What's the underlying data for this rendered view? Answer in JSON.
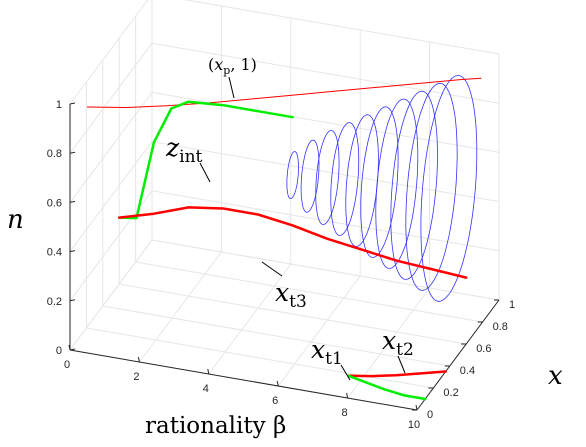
{
  "chart_data": {
    "type": "line",
    "projection": "3d",
    "grid": true,
    "xlabel": "rationality β",
    "ylabel": "x",
    "zlabel": "n",
    "xlim": [
      0,
      10
    ],
    "ylim": [
      0,
      1
    ],
    "zlim": [
      0,
      1
    ],
    "x_ticks": [
      "0",
      "2",
      "4",
      "6",
      "8",
      "10"
    ],
    "y_ticks": [
      "0",
      "0.2",
      "0.4",
      "0.6",
      "0.8",
      "1"
    ],
    "z_ticks": [
      "0",
      "0.2",
      "0.4",
      "0.6",
      "0.8",
      "1"
    ],
    "colors": {
      "red": "#ff0000",
      "green": "#00ee00",
      "blue": "#3333ff",
      "grid": "#e6e6e6",
      "axis": "#262626"
    },
    "annotations": [
      {
        "label": "(x_p, 1)",
        "text": "(",
        "var": "x",
        "sub": "p",
        "tail": ", 1)"
      },
      {
        "label": "z_int",
        "var": "z",
        "sub": "int"
      },
      {
        "label": "x_t3",
        "var": "x",
        "sub": "t3"
      },
      {
        "label": "x_t1",
        "var": "x",
        "sub": "t1"
      },
      {
        "label": "x_t2",
        "var": "x",
        "sub": "t2"
      }
    ],
    "series": [
      {
        "color": "red",
        "width": 1,
        "points": [
          [
            0.5,
            0.0,
            1.0
          ],
          [
            1.5,
            0.05,
            1.0
          ],
          [
            2.5,
            0.12,
            1.0
          ],
          [
            3.5,
            0.2,
            1.0
          ],
          [
            4.5,
            0.29,
            1.0
          ],
          [
            5.5,
            0.38,
            1.0
          ],
          [
            6.5,
            0.47,
            1.0
          ],
          [
            7.5,
            0.56,
            1.0
          ],
          [
            8.5,
            0.65,
            1.0
          ],
          [
            9.5,
            0.74,
            1.0
          ],
          [
            10.0,
            0.78,
            1.0
          ]
        ]
      },
      {
        "color": "green",
        "width": 2.5,
        "points": [
          [
            0.0,
            0.6,
            0.27
          ],
          [
            0.5,
            0.6,
            0.28
          ],
          [
            1.0,
            0.6,
            0.6
          ],
          [
            1.5,
            0.6,
            0.75
          ],
          [
            2.0,
            0.6,
            0.79
          ],
          [
            3.0,
            0.6,
            0.8
          ],
          [
            4.0,
            0.6,
            0.8
          ],
          [
            5.0,
            0.6,
            0.8
          ]
        ]
      },
      {
        "color": "red",
        "width": 2.5,
        "points": [
          [
            0.0,
            0.6,
            0.27
          ],
          [
            1.0,
            0.6,
            0.31
          ],
          [
            2.0,
            0.6,
            0.36
          ],
          [
            3.0,
            0.6,
            0.38
          ],
          [
            4.0,
            0.6,
            0.38
          ],
          [
            5.0,
            0.6,
            0.36
          ],
          [
            6.0,
            0.6,
            0.33
          ],
          [
            7.0,
            0.6,
            0.31
          ],
          [
            8.0,
            0.6,
            0.29
          ],
          [
            9.0,
            0.6,
            0.28
          ],
          [
            10.0,
            0.6,
            0.27
          ]
        ]
      },
      {
        "color": "red",
        "width": 2.5,
        "points": [
          [
            7.6,
            0.18,
            0.0
          ],
          [
            8.2,
            0.21,
            0.0
          ],
          [
            8.8,
            0.25,
            0.0
          ],
          [
            9.4,
            0.3,
            0.0
          ],
          [
            10.0,
            0.35,
            0.0
          ]
        ]
      },
      {
        "color": "green",
        "width": 2.5,
        "points": [
          [
            7.6,
            0.18,
            0.0
          ],
          [
            8.2,
            0.15,
            0.0
          ],
          [
            8.8,
            0.12,
            0.0
          ],
          [
            9.4,
            0.1,
            0.0
          ],
          [
            10.0,
            0.1,
            0.0
          ]
        ]
      }
    ],
    "loops": {
      "color": "blue",
      "width": 0.8,
      "center_x": [
        5.0,
        5.5,
        6.0,
        6.5,
        7.0,
        7.5,
        8.0,
        8.5,
        9.0,
        9.5
      ],
      "size": [
        0.15,
        0.23,
        0.3,
        0.36,
        0.42,
        0.48,
        0.54,
        0.6,
        0.66,
        0.72
      ],
      "y_center": 0.6,
      "z_center": 0.55
    }
  }
}
